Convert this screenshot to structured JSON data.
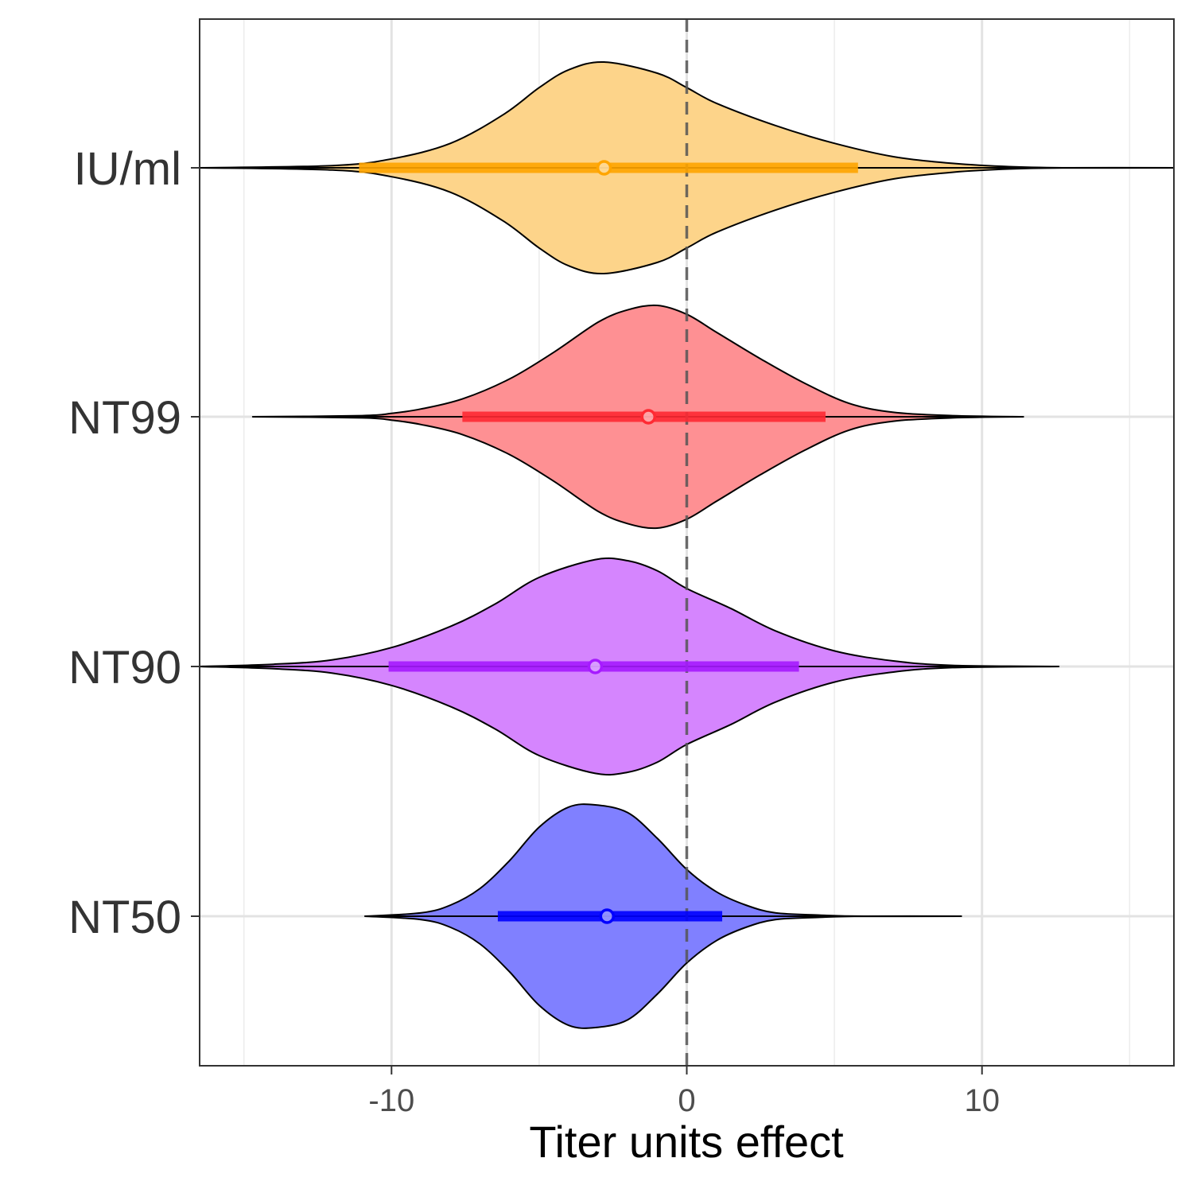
{
  "chart_data": {
    "type": "violin",
    "xlabel": "Titer units effect",
    "ylabel": "",
    "xlim": [
      -16.5,
      16.5
    ],
    "x_ticks": [
      -10,
      0,
      10
    ],
    "x_tick_labels": [
      "-10",
      "0",
      "10"
    ],
    "grid": true,
    "reference_line": {
      "x": 0,
      "style": "dashed"
    },
    "categories": [
      "IU/ml",
      "NT99",
      "NT90",
      "NT50"
    ],
    "series": [
      {
        "name": "IU/ml",
        "color": "#FFA500",
        "fill": "#FDD48A",
        "median": -2.8,
        "interval": [
          -11.1,
          5.8
        ],
        "range": [
          -16.5,
          16.5
        ],
        "density_x": [
          -16.5,
          -12,
          -10,
          -8,
          -6.2,
          -5,
          -4,
          -2.8,
          -1,
          0,
          1,
          3,
          5,
          7,
          9,
          11,
          13,
          16.5
        ],
        "density_w": [
          0.0,
          0.02,
          0.08,
          0.22,
          0.48,
          0.72,
          0.88,
          0.95,
          0.85,
          0.72,
          0.58,
          0.38,
          0.22,
          0.1,
          0.04,
          0.01,
          0.0,
          0.0
        ]
      },
      {
        "name": "NT99",
        "color": "#FF2A33",
        "fill": "#FE9093",
        "median": -1.3,
        "interval": [
          -7.6,
          4.7
        ],
        "range": [
          -14.7,
          11.4
        ],
        "density_x": [
          -14.7,
          -11,
          -10,
          -9,
          -7.6,
          -6,
          -4.5,
          -3,
          -2,
          -1,
          0,
          1,
          2.5,
          4,
          5.5,
          7,
          9,
          11.4
        ],
        "density_w": [
          0.0,
          0.01,
          0.03,
          0.07,
          0.16,
          0.34,
          0.58,
          0.85,
          0.96,
          1.0,
          0.92,
          0.76,
          0.52,
          0.3,
          0.12,
          0.04,
          0.01,
          0.0
        ]
      },
      {
        "name": "NT90",
        "color": "#A61AFF",
        "fill": "#D585FE",
        "median": -3.1,
        "interval": [
          -10.1,
          3.8
        ],
        "range": [
          -16.5,
          12.6
        ],
        "density_x": [
          -16.5,
          -14,
          -12,
          -10,
          -8,
          -6.5,
          -5,
          -3.1,
          -2,
          -1,
          0,
          1.5,
          3,
          5,
          7,
          9,
          12.6
        ],
        "density_w": [
          0.0,
          0.02,
          0.06,
          0.17,
          0.36,
          0.56,
          0.8,
          0.96,
          0.95,
          0.86,
          0.7,
          0.52,
          0.32,
          0.14,
          0.05,
          0.01,
          0.0
        ]
      },
      {
        "name": "NT50",
        "color": "#0000FF",
        "fill": "#8080FF",
        "median": -2.7,
        "interval": [
          -6.4,
          1.2
        ],
        "range": [
          -10.9,
          9.3
        ],
        "density_x": [
          -10.9,
          -9,
          -8,
          -7,
          -6,
          -5,
          -4,
          -3.1,
          -2,
          -1,
          0,
          1,
          2,
          3,
          4.5,
          6,
          9.3
        ],
        "density_w": [
          0.0,
          0.03,
          0.1,
          0.25,
          0.5,
          0.8,
          0.98,
          1.0,
          0.93,
          0.7,
          0.42,
          0.22,
          0.1,
          0.03,
          0.01,
          0.0,
          0.0
        ]
      }
    ]
  }
}
